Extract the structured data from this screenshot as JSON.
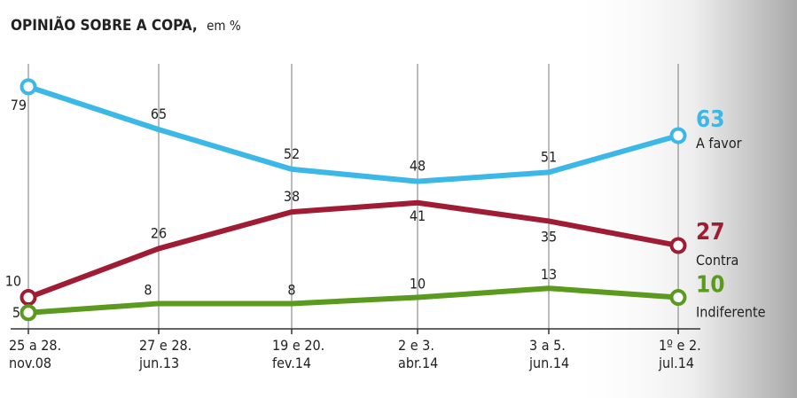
{
  "chart_data": {
    "type": "line",
    "title": "OPINIÃO SOBRE A COPA,",
    "subtitle": "em %",
    "categories": [
      [
        "25 a 28.",
        "nov.08"
      ],
      [
        "27 e 28.",
        "jun.13"
      ],
      [
        "19 e 20.",
        "fev.14"
      ],
      [
        "2 e 3.",
        "abr.14"
      ],
      [
        "3 a 5.",
        "jun.14"
      ],
      [
        "1º e 2.",
        "jul.14"
      ]
    ],
    "ylim": [
      0,
      90
    ],
    "grid": "vertical",
    "series": [
      {
        "name": "A favor",
        "color": "#3cb8e8",
        "values": [
          79,
          65,
          52,
          48,
          51,
          63
        ],
        "labels": [
          "79",
          "65",
          "52",
          "48",
          "51",
          "63"
        ]
      },
      {
        "name": "Contra",
        "color": "#a01c34",
        "values": [
          10,
          26,
          38,
          41,
          35,
          27
        ],
        "labels": [
          "10",
          "26",
          "38",
          "41",
          "35",
          "27"
        ]
      },
      {
        "name": "Indiferente",
        "color": "#5a9a1e",
        "values": [
          5,
          8,
          8,
          10,
          13,
          10
        ],
        "labels": [
          "5",
          "8",
          "8",
          "10",
          "13",
          "10"
        ]
      }
    ]
  }
}
